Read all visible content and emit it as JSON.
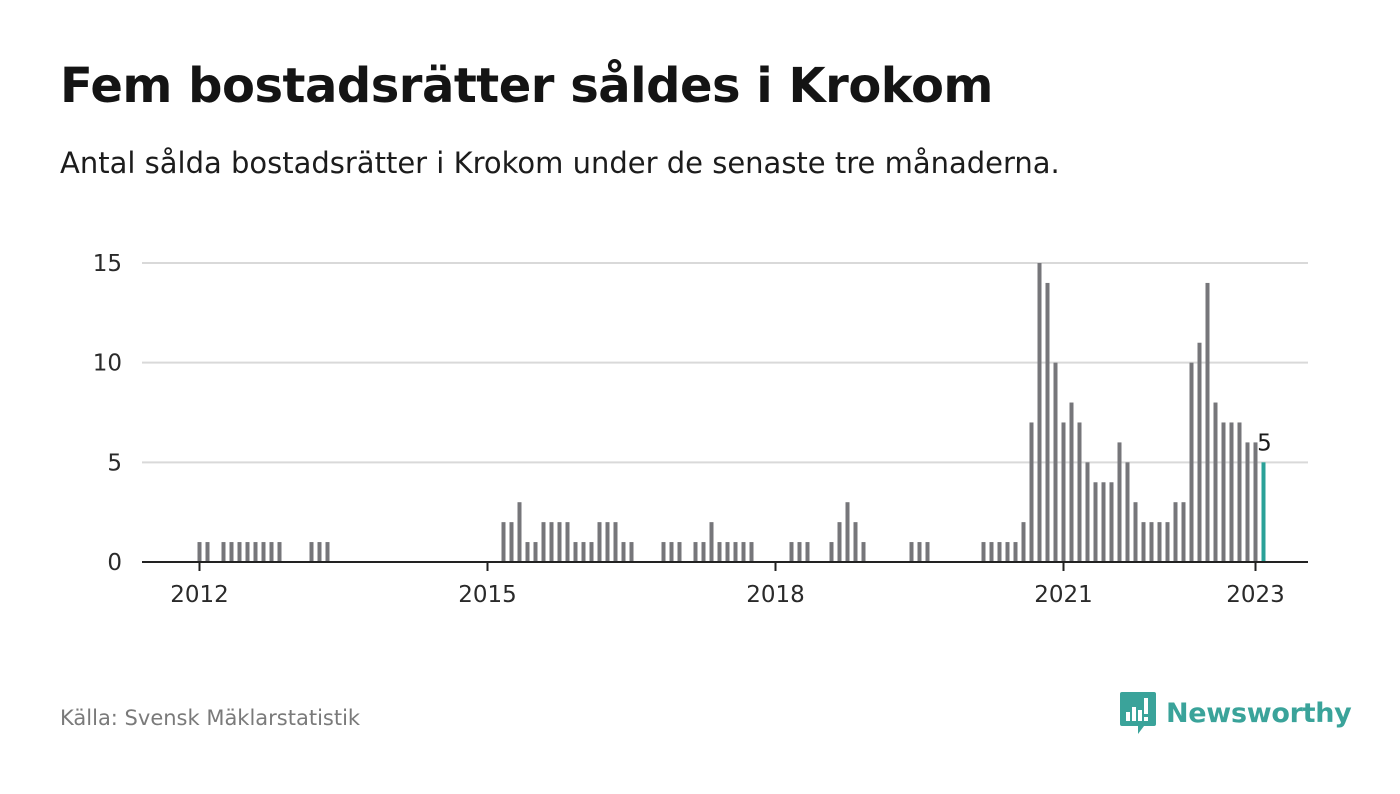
{
  "title": "Fem bostadsrätter såldes i Krokom",
  "subtitle": "Antal sålda bostadsrätter i Krokom under de senaste tre månaderna.",
  "source": "Källa: Svensk Mäklarstatistik",
  "brand": {
    "name": "Newsworthy",
    "icon": "newsworthy-logo-icon"
  },
  "colors": {
    "bar": "#76767a",
    "highlight": "#2aa198",
    "grid": "#d9d9d9",
    "axis": "#222222",
    "brand": "#3aa39a"
  },
  "chart_data": {
    "type": "bar",
    "start": "2012-01",
    "ylim": [
      0,
      15
    ],
    "yticks": [
      {
        "value": 0,
        "label": "0"
      },
      {
        "value": 5,
        "label": "5"
      },
      {
        "value": 10,
        "label": "10"
      },
      {
        "value": 15,
        "label": "15"
      }
    ],
    "xticks": [
      {
        "value": "2012-01",
        "label": "2012"
      },
      {
        "value": "2015-01",
        "label": "2015"
      },
      {
        "value": "2018-01",
        "label": "2018"
      },
      {
        "value": "2021-01",
        "label": "2021"
      },
      {
        "value": "2023-01",
        "label": "2023"
      }
    ],
    "values": [
      1,
      1,
      0,
      1,
      1,
      1,
      1,
      1,
      1,
      1,
      1,
      0,
      0,
      0,
      1,
      1,
      1,
      0,
      0,
      0,
      0,
      0,
      0,
      0,
      0,
      0,
      0,
      0,
      0,
      0,
      0,
      0,
      0,
      0,
      0,
      0,
      0,
      0,
      2,
      2,
      3,
      1,
      1,
      2,
      2,
      2,
      2,
      1,
      1,
      1,
      2,
      2,
      2,
      1,
      1,
      0,
      0,
      0,
      1,
      1,
      1,
      0,
      1,
      1,
      2,
      1,
      1,
      1,
      1,
      1,
      0,
      0,
      0,
      0,
      1,
      1,
      1,
      0,
      0,
      1,
      2,
      3,
      2,
      1,
      0,
      0,
      0,
      0,
      0,
      1,
      1,
      1,
      0,
      0,
      0,
      0,
      0,
      0,
      1,
      1,
      1,
      1,
      1,
      2,
      7,
      15,
      14,
      10,
      7,
      8,
      7,
      5,
      4,
      4,
      4,
      6,
      5,
      3,
      2,
      2,
      2,
      2,
      3,
      3,
      10,
      11,
      14,
      8,
      7,
      7,
      7,
      6,
      6,
      5
    ],
    "highlight_last": true,
    "last_label": "5"
  }
}
